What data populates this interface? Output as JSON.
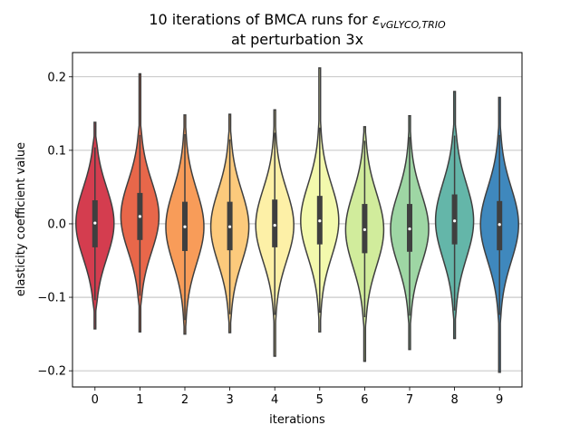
{
  "chart_data": {
    "type": "violin",
    "title_line1_prefix": "10 iterations of BMCA runs for ",
    "title_symbol": "ε",
    "title_subscript": "vGLYCO,TRIO",
    "title_line2": "at perturbation 3x",
    "xlabel": "iterations",
    "ylabel": "elasticity coefficient value",
    "categories": [
      "0",
      "1",
      "2",
      "3",
      "4",
      "5",
      "6",
      "7",
      "8",
      "9"
    ],
    "ylim": [
      -0.222,
      0.233
    ],
    "yticks": [
      -0.2,
      -0.1,
      0.0,
      0.1,
      0.2
    ],
    "ytick_labels": [
      "−0.2",
      "−0.1",
      "0.0",
      "0.1",
      "0.2"
    ],
    "grid": "horizontal",
    "violins": [
      {
        "color": "#d43d4f",
        "min": -0.143,
        "max": 0.138,
        "q1": -0.032,
        "median": 0.001,
        "q3": 0.032,
        "whisk_lo": -0.104,
        "whisk_hi": 0.104
      },
      {
        "color": "#e8674a",
        "min": -0.147,
        "max": 0.204,
        "q1": -0.022,
        "median": 0.01,
        "q3": 0.042,
        "whisk_lo": -0.098,
        "whisk_hi": 0.121
      },
      {
        "color": "#f89c59",
        "min": -0.15,
        "max": 0.148,
        "q1": -0.037,
        "median": -0.004,
        "q3": 0.03,
        "whisk_lo": -0.131,
        "whisk_hi": 0.122
      },
      {
        "color": "#fcca7c",
        "min": -0.148,
        "max": 0.149,
        "q1": -0.036,
        "median": -0.004,
        "q3": 0.03,
        "whisk_lo": -0.123,
        "whisk_hi": 0.115
      },
      {
        "color": "#fdf0a7",
        "min": -0.18,
        "max": 0.155,
        "q1": -0.032,
        "median": -0.002,
        "q3": 0.033,
        "whisk_lo": -0.124,
        "whisk_hi": 0.124
      },
      {
        "color": "#f3f9ad",
        "min": -0.147,
        "max": 0.212,
        "q1": -0.028,
        "median": 0.004,
        "q3": 0.038,
        "whisk_lo": -0.121,
        "whisk_hi": 0.131
      },
      {
        "color": "#d1ec9c",
        "min": -0.187,
        "max": 0.132,
        "q1": -0.04,
        "median": -0.008,
        "q3": 0.027,
        "whisk_lo": -0.127,
        "whisk_hi": 0.113
      },
      {
        "color": "#9ed6a4",
        "min": -0.171,
        "max": 0.147,
        "q1": -0.038,
        "median": -0.007,
        "q3": 0.027,
        "whisk_lo": -0.125,
        "whisk_hi": 0.118
      },
      {
        "color": "#64b6a9",
        "min": -0.156,
        "max": 0.18,
        "q1": -0.028,
        "median": 0.004,
        "q3": 0.04,
        "whisk_lo": -0.118,
        "whisk_hi": 0.12
      },
      {
        "color": "#3f88bd",
        "min": -0.202,
        "max": 0.172,
        "q1": -0.036,
        "median": -0.001,
        "q3": 0.031,
        "whisk_lo": -0.124,
        "whisk_hi": 0.121
      }
    ]
  }
}
